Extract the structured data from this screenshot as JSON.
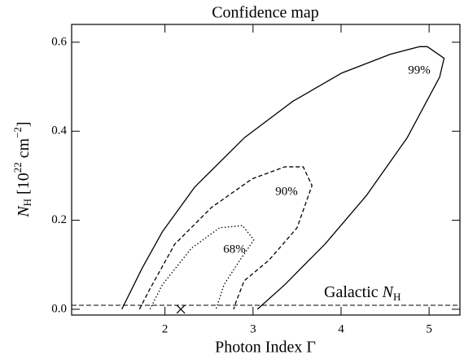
{
  "chart_data": {
    "type": "contour",
    "title": "Confidence map",
    "xlabel": "Photon Index Γ",
    "ylabel": {
      "symbol": "N",
      "sub": "H",
      "open": " [10",
      "exp1": "22",
      "unit": " cm",
      "exp2": "−2",
      "close": "]"
    },
    "xlim": [
      0.94,
      5.35
    ],
    "ylim": [
      -0.013,
      0.64
    ],
    "xticks": [
      2,
      3,
      4,
      5
    ],
    "yticks": [
      {
        "value": 0,
        "label": "0.0"
      },
      0.2,
      0.4,
      0.6
    ],
    "series": [
      {
        "name": "99%",
        "style": "solid",
        "x": [
          1.51,
          1.74,
          1.97,
          2.34,
          2.9,
          3.45,
          4.01,
          4.56,
          4.89,
          4.98,
          5.17,
          5.12,
          4.75,
          4.29,
          3.82,
          3.36,
          3.05
        ],
        "values": [
          0,
          0.092,
          0.174,
          0.275,
          0.385,
          0.467,
          0.531,
          0.573,
          0.59,
          0.59,
          0.564,
          0.522,
          0.385,
          0.256,
          0.147,
          0.055,
          0
        ]
      },
      {
        "name": "90%",
        "style": "dashed",
        "x": [
          1.71,
          1.83,
          2.11,
          2.53,
          2.99,
          3.36,
          3.57,
          3.67,
          3.5,
          3.18,
          2.9,
          2.81,
          2.78
        ],
        "values": [
          0,
          0.046,
          0.146,
          0.229,
          0.293,
          0.32,
          0.32,
          0.278,
          0.183,
          0.11,
          0.064,
          0.018,
          0
        ]
      },
      {
        "name": "68%",
        "style": "dotted",
        "x": [
          1.83,
          1.97,
          2.3,
          2.62,
          2.88,
          3.01,
          2.85,
          2.67,
          2.58
        ],
        "values": [
          0,
          0.055,
          0.137,
          0.183,
          0.188,
          0.156,
          0.11,
          0.055,
          0
        ]
      }
    ],
    "galactic_nh": {
      "label": {
        "text": "Galactic ",
        "symbol": "N",
        "sub": "H"
      },
      "value": 0.009
    },
    "best_fit": {
      "x": 2.18,
      "y": 0
    }
  }
}
